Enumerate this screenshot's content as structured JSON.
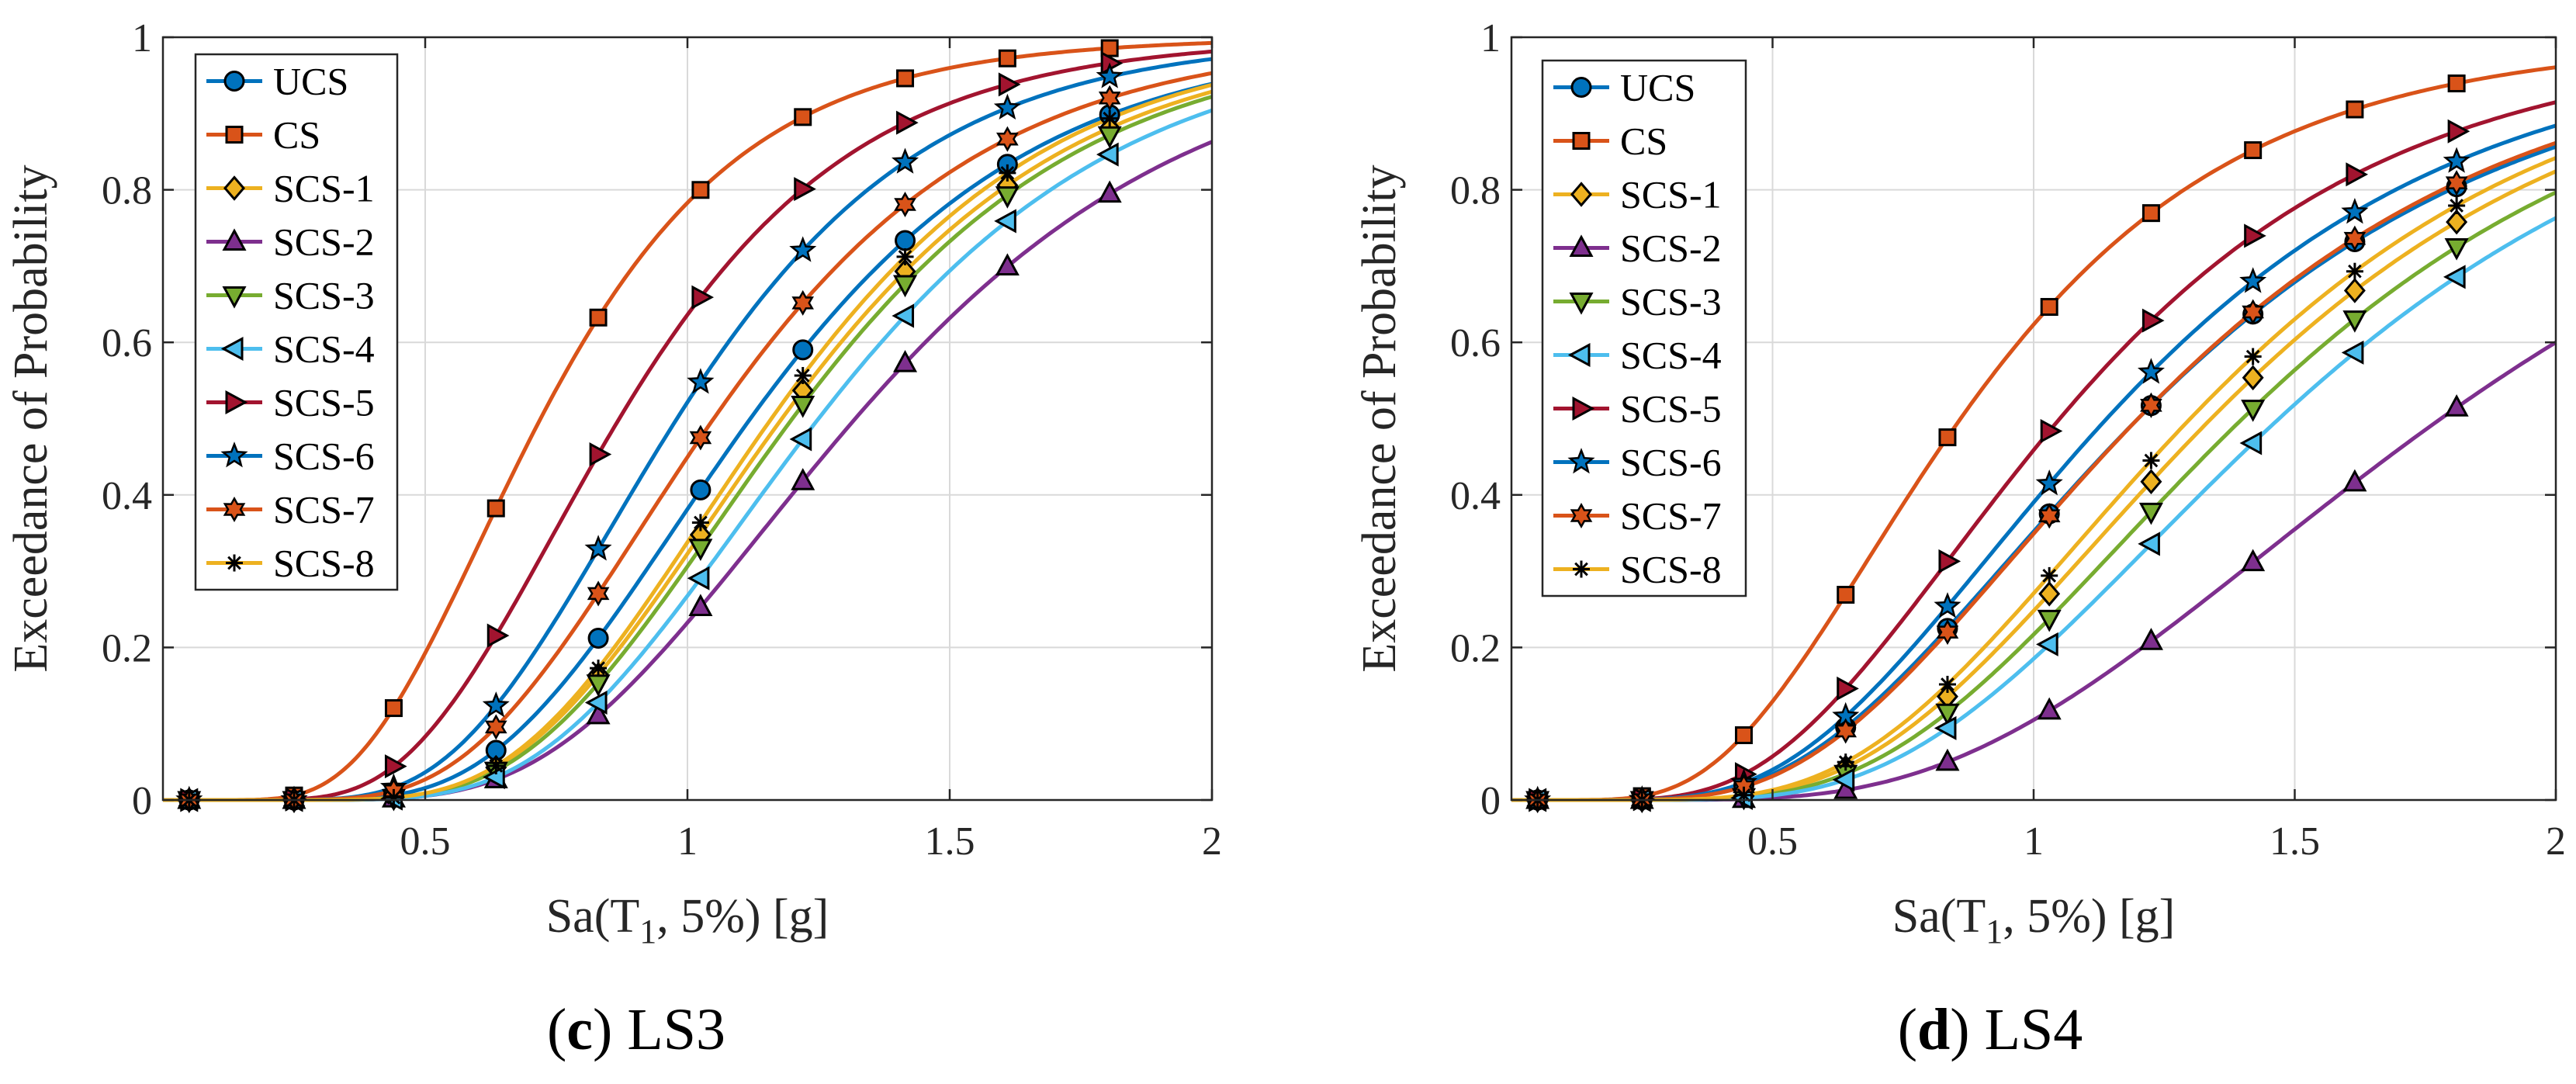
{
  "figure": {
    "background": "#ffffff"
  },
  "series_styles": [
    {
      "name": "UCS",
      "color": "#0072BD",
      "marker": "circle"
    },
    {
      "name": "CS",
      "color": "#D95319",
      "marker": "square"
    },
    {
      "name": "SCS-1",
      "color": "#EDB120",
      "marker": "diamond"
    },
    {
      "name": "SCS-2",
      "color": "#7E2F8E",
      "marker": "triangle-up"
    },
    {
      "name": "SCS-3",
      "color": "#77AC30",
      "marker": "triangle-down"
    },
    {
      "name": "SCS-4",
      "color": "#4DBEEE",
      "marker": "triangle-left"
    },
    {
      "name": "SCS-5",
      "color": "#A2142F",
      "marker": "triangle-right"
    },
    {
      "name": "SCS-6",
      "color": "#0072BD",
      "marker": "pentagram"
    },
    {
      "name": "SCS-7",
      "color": "#D95319",
      "marker": "hexagram"
    },
    {
      "name": "SCS-8",
      "color": "#EDB120",
      "marker": "asterisk"
    }
  ],
  "chart_data": [
    {
      "type": "line",
      "panel": "c",
      "caption_letter": "c",
      "caption_text": " LS3",
      "xlabel": "Sa(T",
      "xlabel_sub": "1",
      "xlabel_tail": ", 5%) [g]",
      "ylabel": "Exceedance of Probability",
      "xlim": [
        0,
        2
      ],
      "ylim": [
        0,
        1
      ],
      "xticks": [
        0.5,
        1,
        1.5,
        2
      ],
      "xtick_labels": [
        "0.5",
        "1",
        "1.5",
        "2"
      ],
      "yticks": [
        0,
        0.2,
        0.4,
        0.6,
        0.8,
        1
      ],
      "ytick_labels": [
        "0",
        "0.2",
        "0.4",
        "0.6",
        "0.8",
        "1"
      ],
      "grid": true,
      "legend_position": "top-left",
      "marker_x": [
        0.05,
        0.25,
        0.44,
        0.635,
        0.83,
        1.025,
        1.22,
        1.415,
        1.61,
        1.805
      ],
      "series": [
        {
          "name": "UCS",
          "median": 1.12,
          "beta": 0.375
        },
        {
          "name": "CS",
          "median": 0.72,
          "beta": 0.42
        },
        {
          "name": "SCS-1",
          "median": 1.18,
          "beta": 0.36
        },
        {
          "name": "SCS-2",
          "median": 1.32,
          "beta": 0.38
        },
        {
          "name": "SCS-3",
          "median": 1.2,
          "beta": 0.36
        },
        {
          "name": "SCS-4",
          "median": 1.25,
          "beta": 0.36
        },
        {
          "name": "SCS-5",
          "median": 0.87,
          "beta": 0.4
        },
        {
          "name": "SCS-6",
          "median": 0.98,
          "beta": 0.375
        },
        {
          "name": "SCS-7",
          "median": 1.05,
          "beta": 0.385
        },
        {
          "name": "SCS-8",
          "median": 1.16,
          "beta": 0.355
        }
      ]
    },
    {
      "type": "line",
      "panel": "d",
      "caption_letter": "d",
      "caption_text": " LS4",
      "xlabel": "Sa(T",
      "xlabel_sub": "1",
      "xlabel_tail": ", 5%) [g]",
      "ylabel": "Exceedance of Probability",
      "xlim": [
        0,
        2
      ],
      "ylim": [
        0,
        1
      ],
      "xticks": [
        0.5,
        1,
        1.5,
        2
      ],
      "xtick_labels": [
        "0.5",
        "1",
        "1.5",
        "2"
      ],
      "yticks": [
        0,
        0.2,
        0.4,
        0.6,
        0.8,
        1
      ],
      "ytick_labels": [
        "0",
        "0.2",
        "0.4",
        "0.6",
        "0.8",
        "1"
      ],
      "grid": true,
      "legend_position": "top-left",
      "marker_x": [
        0.05,
        0.25,
        0.445,
        0.64,
        0.835,
        1.03,
        1.225,
        1.42,
        1.615,
        1.81
      ],
      "series": [
        {
          "name": "UCS",
          "median": 1.2,
          "beta": 0.48
        },
        {
          "name": "CS",
          "median": 0.86,
          "beta": 0.48
        },
        {
          "name": "SCS-1",
          "median": 1.34,
          "beta": 0.43
        },
        {
          "name": "SCS-2",
          "median": 1.78,
          "beta": 0.46
        },
        {
          "name": "SCS-3",
          "median": 1.4,
          "beta": 0.43
        },
        {
          "name": "SCS-4",
          "median": 1.47,
          "beta": 0.43
        },
        {
          "name": "SCS-5",
          "median": 1.05,
          "beta": 0.47
        },
        {
          "name": "SCS-6",
          "median": 1.14,
          "beta": 0.47
        },
        {
          "name": "SCS-7",
          "median": 1.2,
          "beta": 0.47
        },
        {
          "name": "SCS-8",
          "median": 1.3,
          "beta": 0.43
        }
      ]
    }
  ]
}
